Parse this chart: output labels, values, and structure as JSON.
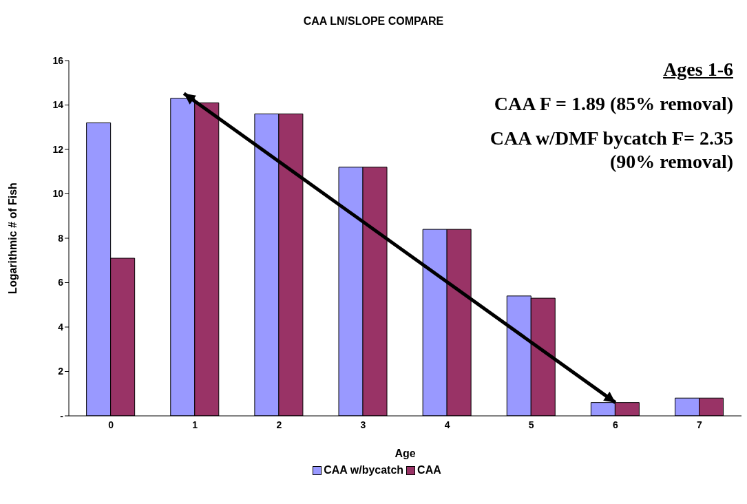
{
  "chart_data": {
    "type": "bar",
    "title": "CAA LN/SLOPE COMPARE",
    "xlabel": "Age",
    "ylabel": "Logarithmic # of Fish",
    "categories": [
      "0",
      "1",
      "2",
      "3",
      "4",
      "5",
      "6",
      "7"
    ],
    "series": [
      {
        "name": "CAA w/bycatch",
        "color": "#9999ff",
        "values": [
          13.2,
          14.3,
          13.6,
          11.2,
          8.4,
          5.4,
          0.6,
          0.8
        ]
      },
      {
        "name": "CAA",
        "color": "#993366",
        "values": [
          7.1,
          14.1,
          13.6,
          11.2,
          8.4,
          5.3,
          0.6,
          0.8
        ]
      }
    ],
    "ylim": [
      0,
      16
    ],
    "yticks": [
      {
        "value": 0,
        "label": "-"
      },
      2,
      4,
      6,
      8,
      10,
      12,
      14,
      16
    ],
    "legend": "bottom",
    "annotations": [
      "Ages 1-6",
      "CAA F = 1.89 (85% removal)",
      "CAA w/DMF bycatch F= 2.35 (90% removal)"
    ]
  }
}
